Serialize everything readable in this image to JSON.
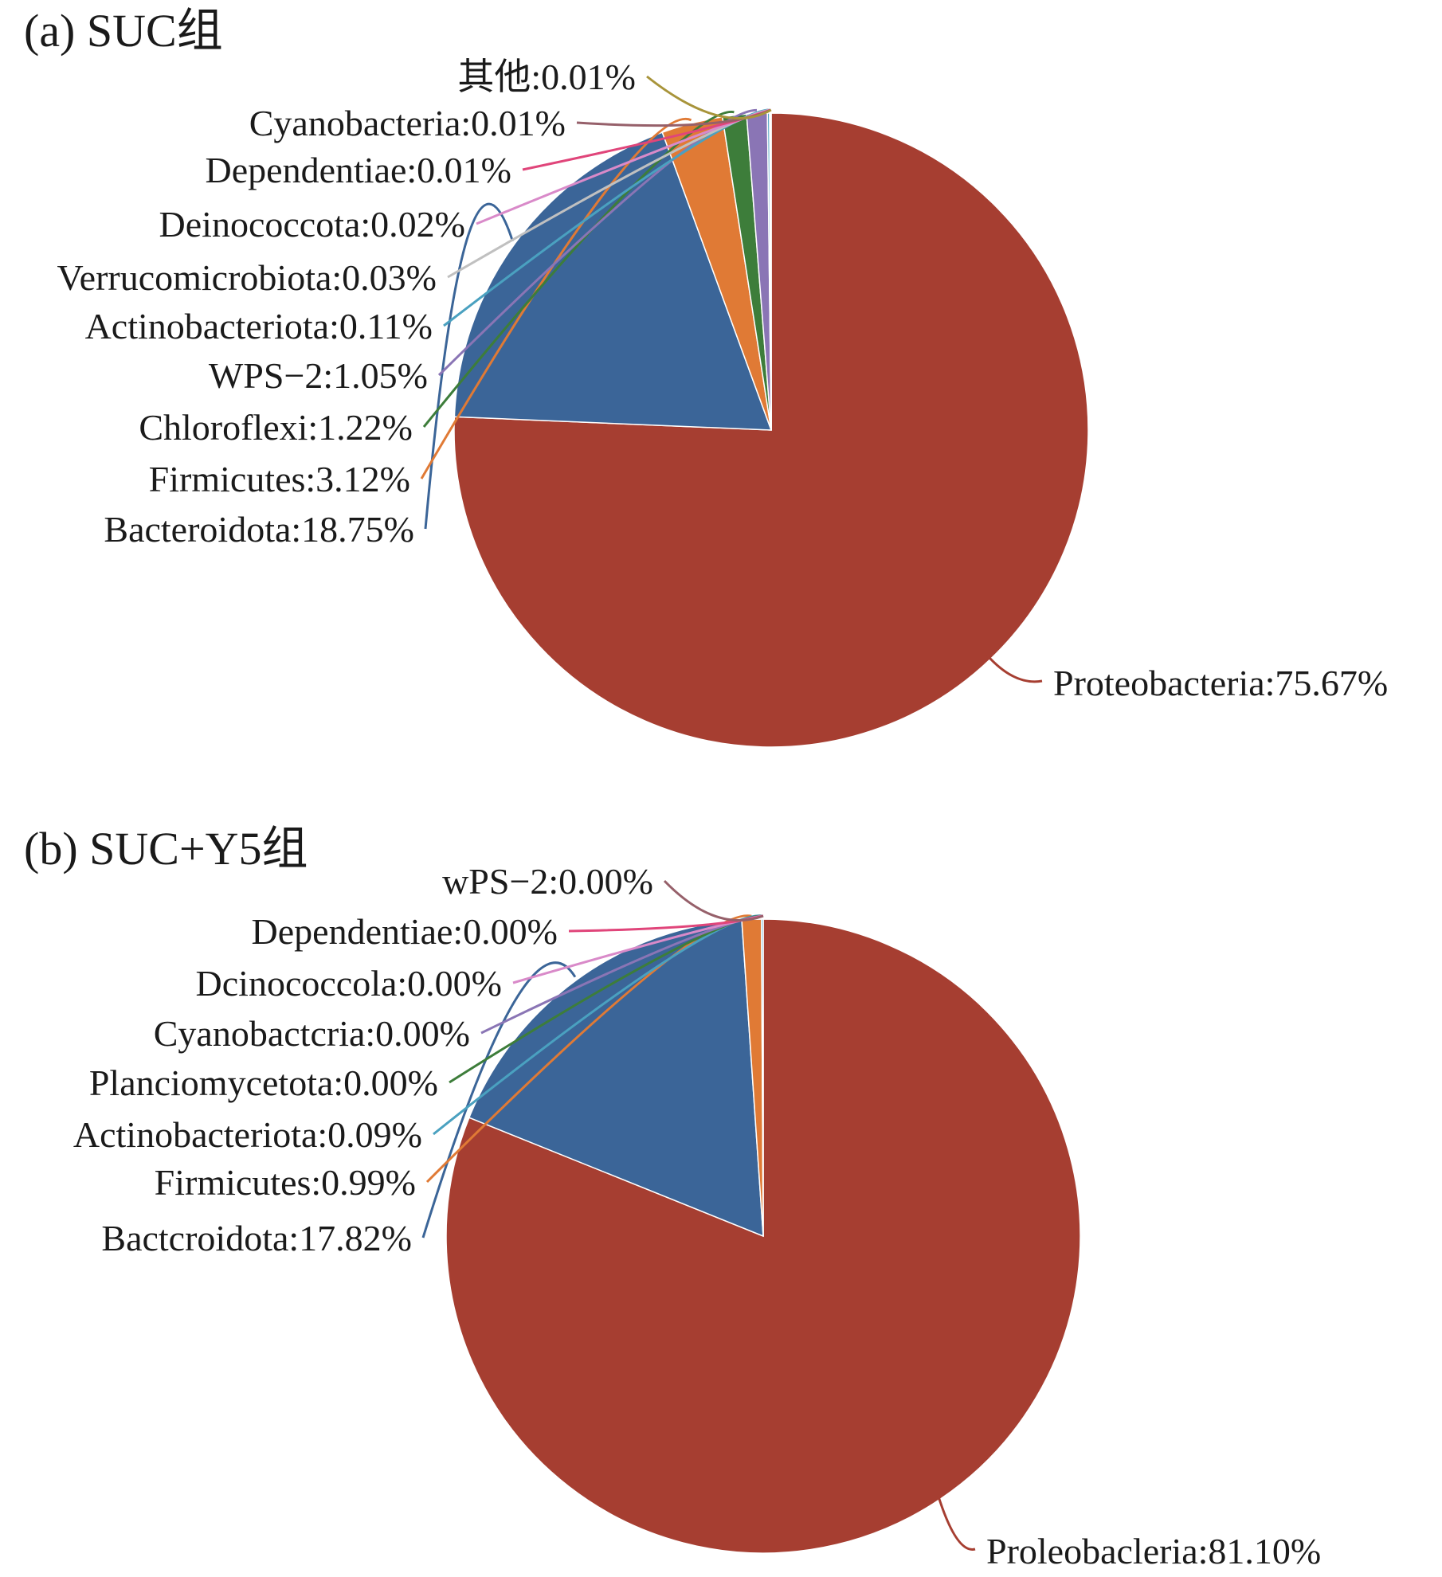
{
  "chart_data": [
    {
      "type": "pie",
      "title": "(a)  SUC组",
      "series": [
        {
          "label": "Proteobacteria:75.67%",
          "value": 75.67,
          "color": "#a63e31"
        },
        {
          "label": "Bacteroidota:18.75%",
          "value": 18.75,
          "color": "#3b6598"
        },
        {
          "label": "Firmicutes:3.12%",
          "value": 3.12,
          "color": "#e07a35"
        },
        {
          "label": "Chloroflexi:1.22%",
          "value": 1.22,
          "color": "#3d7d3a"
        },
        {
          "label": "WPS−2:1.05%",
          "value": 1.05,
          "color": "#8a75b5"
        },
        {
          "label": "Actinobacteriota:0.11%",
          "value": 0.11,
          "color": "#4aa1c0"
        },
        {
          "label": "Verrucomicrobiota:0.03%",
          "value": 0.03,
          "color": "#c0c0c0"
        },
        {
          "label": "Deinococcota:0.02%",
          "value": 0.02,
          "color": "#d98ac9"
        },
        {
          "label": "Dependentiae:0.01%",
          "value": 0.01,
          "color": "#e0457a"
        },
        {
          "label": "Cyanobacteria:0.01%",
          "value": 0.01,
          "color": "#96606a"
        },
        {
          "label": "其他:0.01%",
          "value": 0.01,
          "color": "#a8943a"
        }
      ]
    },
    {
      "type": "pie",
      "title": "(b)  SUC+Y5组",
      "series": [
        {
          "label": "Proleobacleria:81.10%",
          "value": 81.1,
          "color": "#a63e31"
        },
        {
          "label": "Bactcroidota:17.82%",
          "value": 17.82,
          "color": "#3b6598"
        },
        {
          "label": "Firmicutes:0.99%",
          "value": 0.99,
          "color": "#e07a35"
        },
        {
          "label": "Actinobacteriota:0.09%",
          "value": 0.09,
          "color": "#4aa1c0"
        },
        {
          "label": "Planciomycetota:0.00%",
          "value": 0.0,
          "color": "#3d7d3a"
        },
        {
          "label": "Cyanobactcria:0.00%",
          "value": 0.0,
          "color": "#8a75b5"
        },
        {
          "label": "Dcinococcola:0.00%",
          "value": 0.0,
          "color": "#d98ac9"
        },
        {
          "label": "Dependentiae:0.00%",
          "value": 0.0,
          "color": "#e0457a"
        },
        {
          "label": "wPS−2:0.00%",
          "value": 0.0,
          "color": "#96606a"
        }
      ]
    }
  ]
}
